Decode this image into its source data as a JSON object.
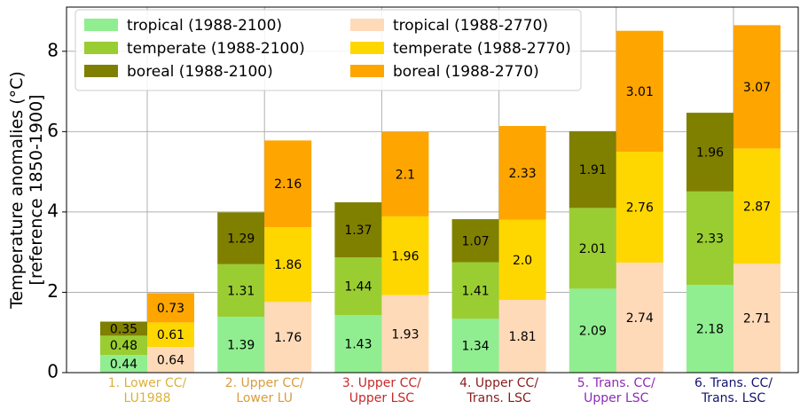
{
  "chart_data": {
    "type": "bar",
    "stacked": true,
    "ylabel": "Temperature anomalies (°C)\n[reference 1850-1900]",
    "categories": [
      "1. Lower CC/\nLU1988",
      "2. Upper CC/\nLower LU",
      "3. Upper CC/\nUpper LSC",
      "4. Upper CC/\nTrans. LSC",
      "5. Trans. CC/\nUpper LSC",
      "6. Trans. CC/\nTrans. LSC"
    ],
    "category_colors": [
      "#dbb13b",
      "#d99c3f",
      "#c62a2a",
      "#8b1c1c",
      "#8e2bb8",
      "#14146e"
    ],
    "series": [
      {
        "name": "tropical (1988-2100)",
        "color": "#90ee90",
        "stack": 0,
        "values": [
          0.44,
          1.39,
          1.43,
          1.34,
          2.09,
          2.18
        ]
      },
      {
        "name": "temperate (1988-2100)",
        "color": "#9acd32",
        "stack": 0,
        "values": [
          0.48,
          1.31,
          1.44,
          1.41,
          2.01,
          2.33
        ]
      },
      {
        "name": "boreal (1988-2100)",
        "color": "#808000",
        "stack": 0,
        "values": [
          0.35,
          1.29,
          1.37,
          1.07,
          1.91,
          1.96
        ]
      },
      {
        "name": "tropical (1988-2770)",
        "color": "#ffdab9",
        "stack": 1,
        "values": [
          0.64,
          1.76,
          1.93,
          1.81,
          2.74,
          2.71
        ]
      },
      {
        "name": "temperate (1988-2770)",
        "color": "#ffd700",
        "stack": 1,
        "values": [
          0.61,
          1.86,
          1.96,
          2.0,
          2.76,
          2.87
        ],
        "value_labels": [
          "0.61",
          "1.86",
          "1.96",
          "2.0",
          "2.76",
          "2.87"
        ]
      },
      {
        "name": "boreal (1988-2770)",
        "color": "#ffa500",
        "stack": 1,
        "values": [
          0.73,
          2.16,
          2.1,
          2.33,
          3.01,
          3.07
        ]
      }
    ],
    "ylim": [
      0,
      9.1
    ],
    "yticks": [
      0,
      2,
      4,
      6,
      8
    ],
    "grid": true,
    "legend": "upper left",
    "legend_columns": 2
  }
}
